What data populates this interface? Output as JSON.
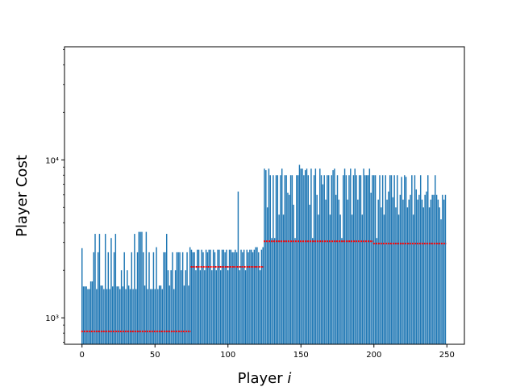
{
  "chart_data": {
    "type": "bar",
    "title": "",
    "xlabel_text": "Player ",
    "xlabel_italic": "i",
    "ylabel": "Player Cost",
    "x_scale": "linear",
    "y_scale": "log",
    "xlim": [
      -12,
      262
    ],
    "ylim": [
      680,
      52000
    ],
    "x_ticks": [
      0,
      50,
      100,
      150,
      200,
      250
    ],
    "x_tick_labels": [
      "0",
      "50",
      "100",
      "150",
      "200",
      "250"
    ],
    "y_ticks": [
      1000,
      10000
    ],
    "y_tick_labels": [
      "10³",
      "10⁴"
    ],
    "grid": false,
    "legend": "none",
    "colors": {
      "bars": "#1f77b4",
      "reference": "#ff0000",
      "axes": "#000000"
    },
    "bar_groups": [
      {
        "players": [
          0,
          74
        ],
        "values": [
          2760,
          1580,
          1580,
          1580,
          1520,
          1520,
          1700,
          1700,
          2600,
          3400,
          1520,
          2600,
          3400,
          1600,
          1600,
          1520,
          3400,
          1520,
          2600,
          1520,
          3200,
          1580,
          2600,
          3400,
          1580,
          1580,
          1520,
          2000,
          1580,
          2600,
          1520,
          2000,
          1600,
          1520,
          2600,
          1520,
          3400,
          1520,
          2600,
          3500,
          3500,
          3500,
          2600,
          1600,
          3500,
          1520,
          2600,
          1520,
          1520,
          2600,
          1520,
          2800,
          1520,
          1600,
          1600,
          1520,
          2600,
          2600,
          3400,
          2000,
          1600,
          2000,
          2600,
          1520,
          2000,
          2600,
          2600,
          2600,
          2000,
          2600,
          1600,
          2000,
          2600,
          1600,
          2800
        ]
      },
      {
        "players": [
          75,
          124
        ],
        "values": [
          2700,
          2600,
          2600,
          2000,
          2700,
          2700,
          2000,
          2700,
          2600,
          2000,
          2700,
          2600,
          2700,
          2700,
          2000,
          2700,
          2600,
          2000,
          2700,
          2700,
          2000,
          2700,
          2700,
          2600,
          2700,
          2000,
          2700,
          2700,
          2600,
          2600,
          2700,
          2600,
          6300,
          2000,
          2700,
          2600,
          2700,
          2000,
          2700,
          2600,
          2700,
          2700,
          2600,
          2700,
          2800,
          2800,
          2600,
          2000,
          2700,
          2800
        ]
      },
      {
        "players": [
          125,
          199
        ],
        "values": [
          8800,
          8600,
          5000,
          8800,
          8000,
          3200,
          8000,
          3200,
          8000,
          8000,
          4500,
          8000,
          8800,
          4500,
          8000,
          8000,
          6200,
          6000,
          8000,
          8000,
          5200,
          3200,
          8000,
          8000,
          9300,
          8800,
          8800,
          8000,
          8600,
          8800,
          8000,
          5200,
          8800,
          3200,
          8000,
          8800,
          6000,
          4500,
          8800,
          8000,
          7000,
          8000,
          5600,
          8000,
          8000,
          4500,
          8000,
          8600,
          8800,
          6000,
          8000,
          5600,
          4500,
          3200,
          8000,
          8800,
          8000,
          5600,
          8000,
          8800,
          4500,
          8000,
          8800,
          8000,
          5600,
          8000,
          8000,
          4500,
          8800,
          8000,
          8000,
          8000,
          8800,
          6200,
          8000
        ]
      },
      {
        "players": [
          200,
          249
        ],
        "values": [
          8000,
          8000,
          3200,
          5600,
          8000,
          5000,
          8000,
          4500,
          8000,
          5600,
          6300,
          8000,
          8000,
          5800,
          8000,
          5000,
          8000,
          4500,
          6000,
          7800,
          5600,
          8000,
          7800,
          5000,
          5600,
          6000,
          8000,
          4500,
          8000,
          6500,
          5600,
          6000,
          8000,
          5600,
          5000,
          6000,
          6300,
          8000,
          5000,
          5600,
          6000,
          6000,
          8000,
          6000,
          5600,
          5000,
          4200,
          6000,
          5600,
          6000
        ]
      }
    ],
    "reference_lines": [
      {
        "x": [
          0,
          74
        ],
        "y": 820
      },
      {
        "x": [
          75,
          124
        ],
        "y": 2100
      },
      {
        "x": [
          125,
          199
        ],
        "y": 3050
      },
      {
        "x": [
          200,
          249
        ],
        "y": 2950
      }
    ]
  }
}
